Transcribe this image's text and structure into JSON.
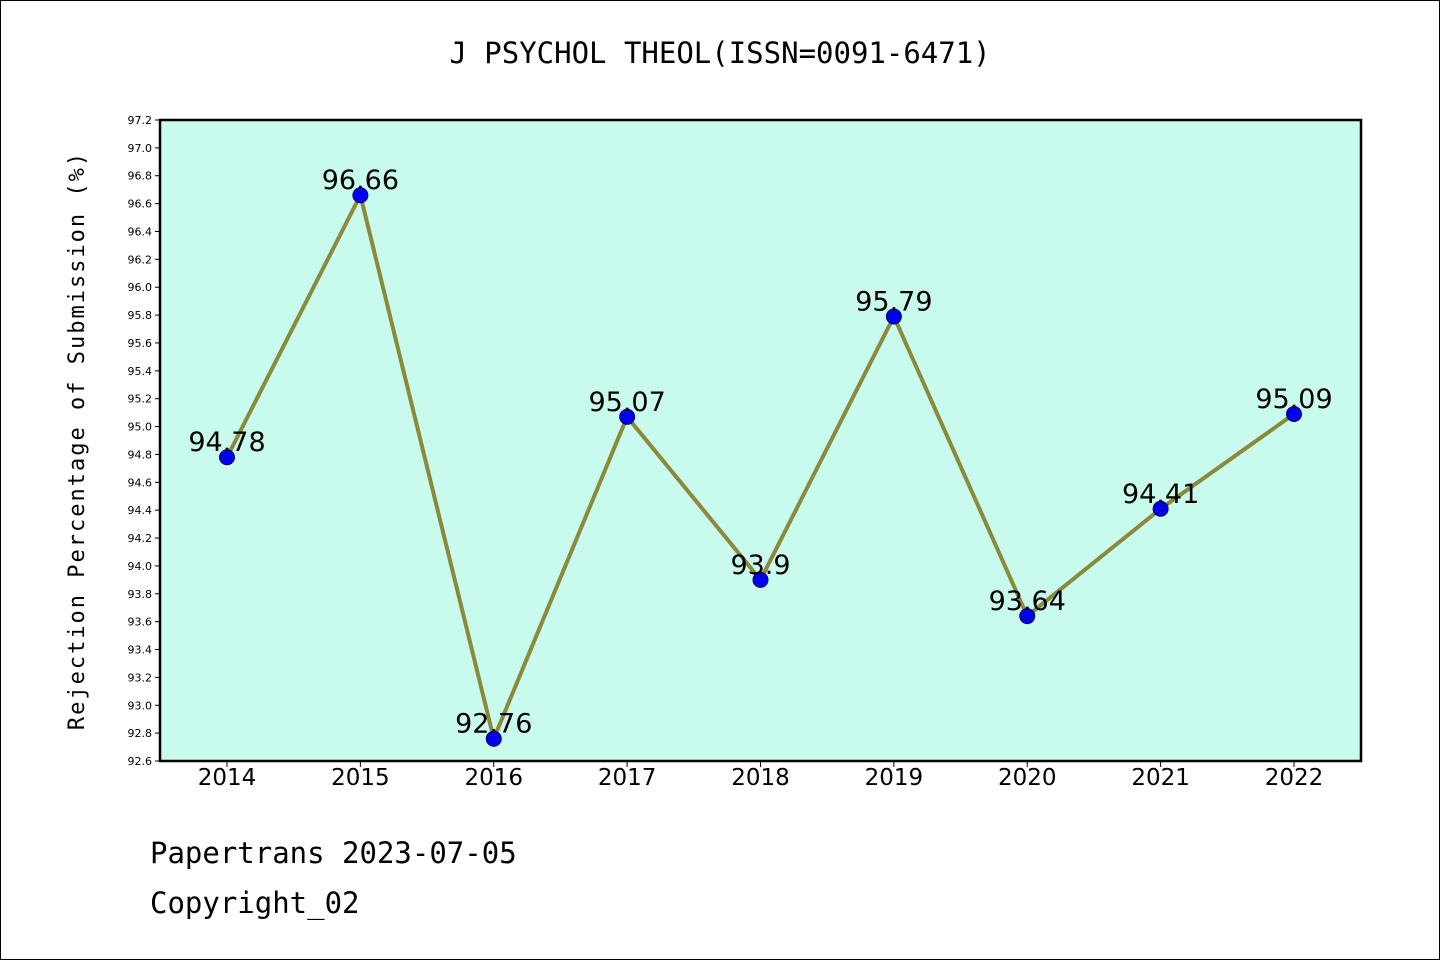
{
  "title": "J PSYCHOL THEOL(ISSN=0091-6471)",
  "footer": {
    "line1": "Papertrans 2023-07-05",
    "line2": "Copyright_02"
  },
  "colors": {
    "plot_background": "#c8fbee",
    "line": "#8b8a3a",
    "marker": "#0000ee"
  },
  "chart_data": {
    "type": "line",
    "categories": [
      "2014",
      "2015",
      "2016",
      "2017",
      "2018",
      "2019",
      "2020",
      "2021",
      "2022"
    ],
    "values": [
      94.78,
      96.66,
      92.76,
      95.07,
      93.9,
      95.79,
      93.64,
      94.41,
      95.09
    ],
    "data_labels": [
      "94.78",
      "96.66",
      "92.76",
      "95.07",
      "93.9",
      "95.79",
      "93.64",
      "94.41",
      "95.09"
    ],
    "title": "J PSYCHOL THEOL(ISSN=0091-6471)",
    "xlabel": "",
    "ylabel": "Rejection Percentage of Submission (%)",
    "ylim": [
      92.6,
      97.2
    ],
    "yticks": [
      "92.6",
      "92.8",
      "93.0",
      "93.2",
      "93.4",
      "93.6",
      "93.8",
      "94.0",
      "94.2",
      "94.4",
      "94.6",
      "94.8",
      "95.0",
      "95.2",
      "95.4",
      "95.6",
      "95.8",
      "96.0",
      "96.2",
      "96.4",
      "96.6",
      "96.8",
      "97.0",
      "97.2"
    ],
    "grid": false,
    "legend": "none"
  }
}
